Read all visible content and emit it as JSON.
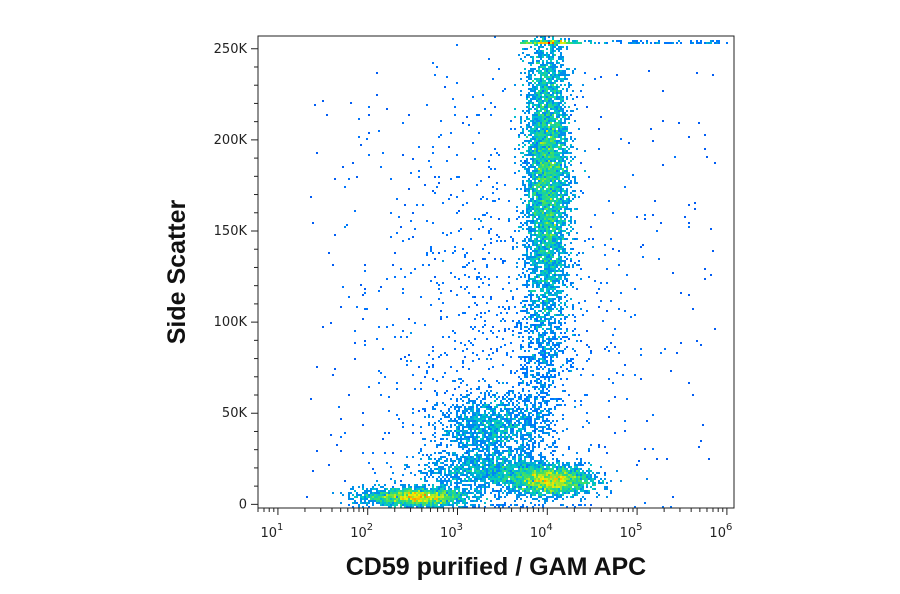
{
  "chart_data": {
    "type": "heatmap",
    "subtype": "flow-cytometry-density-scatter",
    "title": "",
    "xlabel": "CD59 purified / GAM APC",
    "ylabel": "Side Scatter",
    "x_scale": "log",
    "xlim": [
      6,
      1200000
    ],
    "ylim": [
      -2000,
      257000
    ],
    "x_ticks": [
      {
        "value": 10,
        "base": "10",
        "exp": "1"
      },
      {
        "value": 100,
        "base": "10",
        "exp": "2"
      },
      {
        "value": 1000,
        "base": "10",
        "exp": "3"
      },
      {
        "value": 10000,
        "base": "10",
        "exp": "4"
      },
      {
        "value": 100000,
        "base": "10",
        "exp": "5"
      },
      {
        "value": 1000000,
        "base": "10",
        "exp": "6"
      }
    ],
    "y_ticks": [
      {
        "value": 0,
        "label": "0"
      },
      {
        "value": 50000,
        "label": "50K"
      },
      {
        "value": 100000,
        "label": "100K"
      },
      {
        "value": 150000,
        "label": "150K"
      },
      {
        "value": 200000,
        "label": "200K"
      },
      {
        "value": 250000,
        "label": "250K"
      }
    ],
    "grid": false,
    "colormap": [
      "#0a14c8",
      "#0070ff",
      "#00c8c8",
      "#40e060",
      "#f0f000",
      "#ff8000",
      "#e00000"
    ],
    "populations": [
      {
        "name": "",
        "x_center": 350,
        "y_center": 4000,
        "x_spread_decades": 0.28,
        "y_spread": 2500,
        "points": 2200,
        "peak": "high"
      },
      {
        "name": "",
        "x_center": 11000,
        "y_center": 13000,
        "x_spread_decades": 0.22,
        "y_spread": 4000,
        "points": 2400,
        "peak": "high"
      },
      {
        "name": "",
        "x_center": 2500,
        "y_center": 18000,
        "x_spread_decades": 0.4,
        "y_spread": 5000,
        "points": 1400,
        "peak": "medium"
      },
      {
        "name": "",
        "x_center": 2500,
        "y_center": 42000,
        "x_spread_decades": 0.3,
        "y_spread": 9000,
        "points": 1400,
        "peak": "medium"
      },
      {
        "name": "",
        "x_center": 10000,
        "y_center": 180000,
        "x_spread_decades": 0.12,
        "y_spread": 42000,
        "points": 5500,
        "peak": "high"
      },
      {
        "name": "",
        "x_center": 8000,
        "y_center": 80000,
        "x_spread_decades": 0.15,
        "y_spread": 20000,
        "points": 500,
        "peak": "low"
      },
      {
        "name": "",
        "x_center": 3000,
        "y_center": 100000,
        "x_spread_decades": 0.7,
        "y_spread": 70000,
        "points": 900,
        "peak": "low"
      }
    ],
    "saturation_band": {
      "y_value": 254000,
      "x_from": 5000,
      "x_to": 1000000
    }
  }
}
